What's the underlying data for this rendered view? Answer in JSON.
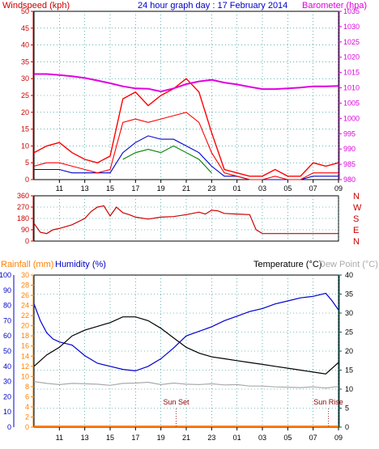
{
  "title": "24 hour graph day : 17 February 2014",
  "colors": {
    "wind": "#ff0000",
    "gust": "#ff0000",
    "wind_avg": "#0000cc",
    "wind_green": "#008000",
    "barometer": "#e000e0",
    "direction": "#cc0000",
    "humidity": "#0000cc",
    "temperature": "#000000",
    "dewpoint": "#aaaaaa",
    "rainfall": "#ff8000",
    "axis_left1": "#cc0000",
    "axis_left3a": "#ff8000",
    "axis_left3b": "#0000cc",
    "axis_right3": "#006060"
  },
  "chart_data": [
    {
      "type": "line",
      "name": "wind-barometer",
      "ylabel_left": "Windspeed (kph)",
      "ylabel_right": "Barometer (hpa)",
      "ylim_left": [
        0,
        50
      ],
      "ylim_right": [
        980,
        1035
      ],
      "yticks_left": [
        "0",
        "5",
        "10",
        "15",
        "20",
        "25",
        "30",
        "35",
        "40",
        "45",
        "50"
      ],
      "yticks_right": [
        "980",
        "985",
        "990",
        "995",
        "1000",
        "1005",
        "1010",
        "1015",
        "1020",
        "1025",
        "1030",
        "1035"
      ],
      "xticks": [
        "11",
        "13",
        "15",
        "17",
        "19",
        "21",
        "23",
        "01",
        "03",
        "05",
        "07",
        "09"
      ],
      "grid": true,
      "series": [
        {
          "key": "gust",
          "x": [
            9,
            10,
            11,
            12,
            13,
            14,
            15,
            16,
            17,
            18,
            19,
            20,
            21,
            22,
            23,
            24,
            25,
            26,
            27,
            28,
            29,
            30,
            31,
            32,
            33
          ],
          "values": [
            8,
            10,
            11,
            8,
            6,
            5,
            7,
            24,
            26,
            22,
            25,
            27,
            30,
            26,
            14,
            3,
            2,
            1,
            1,
            3,
            1,
            1,
            5,
            4,
            5
          ]
        },
        {
          "key": "wind",
          "x": [
            9,
            10,
            11,
            12,
            13,
            14,
            15,
            16,
            17,
            18,
            19,
            20,
            21,
            22,
            23,
            24,
            25,
            26,
            27,
            28,
            29,
            30,
            31,
            32,
            33
          ],
          "values": [
            4,
            5,
            5,
            4,
            3,
            2,
            3,
            17,
            18,
            17,
            18,
            19,
            20,
            17,
            8,
            2,
            1,
            0,
            0,
            1,
            0,
            0,
            2,
            2,
            2
          ]
        },
        {
          "key": "wind_avg",
          "x": [
            9,
            10,
            11,
            12,
            13,
            14,
            15,
            16,
            17,
            18,
            19,
            20,
            21,
            22,
            23,
            24,
            25,
            26,
            27,
            28,
            29,
            30,
            31,
            32,
            33
          ],
          "values": [
            3,
            3,
            3,
            2,
            2,
            2,
            2,
            8,
            11,
            13,
            12,
            12,
            10,
            8,
            4,
            1,
            1,
            0,
            0,
            0,
            0,
            0,
            1,
            1,
            1
          ]
        },
        {
          "key": "wind_green",
          "x": [
            16,
            17,
            18,
            19,
            20,
            21,
            22,
            23
          ],
          "values": [
            6,
            8,
            9,
            8,
            10,
            8,
            6,
            2
          ]
        },
        {
          "key": "barometer",
          "x": [
            9,
            10,
            11,
            12,
            13,
            14,
            15,
            16,
            17,
            18,
            19,
            20,
            21,
            22,
            23,
            24,
            25,
            26,
            27,
            28,
            29,
            30,
            31,
            32,
            33
          ],
          "values": [
            1014.5,
            1014.5,
            1014.2,
            1013.8,
            1013.2,
            1012.4,
            1011.5,
            1010.5,
            1009.8,
            1009.7,
            1008.8,
            1009.8,
            1011.2,
            1012.1,
            1012.6,
            1011.7,
            1011.1,
            1010.3,
            1009.6,
            1009.6,
            1009.8,
            1010.1,
            1010.5,
            1010.5,
            1010.6
          ]
        }
      ]
    },
    {
      "type": "line",
      "name": "wind-direction",
      "yticks_left": [
        "0",
        "90",
        "180",
        "270",
        "360"
      ],
      "ylim": [
        0,
        360
      ],
      "dir_labels": [
        "N",
        "W",
        "S",
        "E",
        "N"
      ],
      "series": [
        {
          "key": "direction",
          "x": [
            9,
            9.5,
            10,
            10.5,
            11,
            12,
            13,
            13.5,
            14,
            14.5,
            15,
            15.5,
            16,
            16.5,
            17,
            18,
            19,
            20,
            21,
            22,
            22.5,
            23,
            23.5,
            24,
            25,
            26,
            26.5,
            27,
            28,
            29,
            30,
            31,
            32,
            33
          ],
          "values": [
            140,
            70,
            60,
            90,
            100,
            130,
            180,
            235,
            270,
            280,
            200,
            270,
            225,
            210,
            190,
            175,
            190,
            195,
            210,
            230,
            215,
            245,
            240,
            220,
            215,
            210,
            90,
            60,
            60,
            60,
            60,
            60,
            60,
            60
          ]
        }
      ]
    },
    {
      "type": "line",
      "name": "temp-humidity",
      "ylabel_left_a": "Rainfall (mm)",
      "ylabel_left_b": "Humidity (%)",
      "ylabel_right_a": "Temperature (°C)",
      "ylabel_right_b": "Dew Point (°C)",
      "ylim_rain": [
        0,
        30
      ],
      "ylim_hum": [
        0,
        100
      ],
      "ylim_temp": [
        0,
        40
      ],
      "yticks_rain": [
        "0",
        "2",
        "4",
        "6",
        "8",
        "10",
        "12",
        "14",
        "16",
        "18",
        "20",
        "22",
        "24",
        "26",
        "28",
        "30"
      ],
      "yticks_hum": [
        "0",
        "10",
        "20",
        "30",
        "40",
        "50",
        "60",
        "70",
        "80",
        "90",
        "100"
      ],
      "yticks_temp": [
        "0",
        "5",
        "10",
        "15",
        "20",
        "25",
        "30",
        "35",
        "40"
      ],
      "annotations": [
        {
          "text": "Sun Set",
          "x": 20.2
        },
        {
          "text": "Sun Rise",
          "x": 32.2
        }
      ],
      "series": [
        {
          "key": "humidity",
          "x": [
            9,
            9.5,
            10,
            10.5,
            11,
            12,
            13,
            14,
            15,
            16,
            17,
            18,
            19,
            20,
            21,
            22,
            23,
            24,
            25,
            26,
            27,
            28,
            29,
            30,
            31,
            32,
            32.5,
            33
          ],
          "values": [
            81,
            70,
            62,
            58,
            56,
            54,
            47,
            42,
            40,
            38,
            37,
            40,
            45,
            52,
            60,
            63,
            66,
            70,
            73,
            76,
            78,
            81,
            83,
            85,
            86,
            88,
            83,
            77
          ]
        },
        {
          "key": "temperature",
          "x": [
            9,
            10,
            11,
            12,
            13,
            14,
            15,
            16,
            17,
            18,
            19,
            20,
            21,
            22,
            23,
            24,
            25,
            26,
            27,
            28,
            29,
            30,
            31,
            32,
            33
          ],
          "values": [
            16,
            19,
            21,
            24,
            25.5,
            26.5,
            27.5,
            29,
            29,
            28,
            26,
            23.5,
            21,
            19.5,
            18.5,
            18,
            17.5,
            17,
            16.5,
            16,
            15.5,
            15,
            14.5,
            14,
            17
          ]
        },
        {
          "key": "dewpoint",
          "x": [
            9,
            10,
            11,
            12,
            13,
            14,
            15,
            16,
            17,
            18,
            19,
            20,
            21,
            22,
            23,
            24,
            25,
            26,
            27,
            28,
            29,
            30,
            31,
            32,
            33
          ],
          "values": [
            12,
            11.5,
            11.2,
            11.5,
            11.4,
            11.3,
            11,
            11.5,
            11.6,
            11.8,
            11.2,
            11.6,
            11.3,
            11.2,
            11.4,
            11.1,
            11.2,
            10.8,
            10.8,
            10.6,
            10.5,
            10.4,
            10.6,
            10.3,
            10.7
          ]
        },
        {
          "key": "rainfall",
          "x": [
            9,
            33
          ],
          "values": [
            0,
            0
          ]
        }
      ]
    }
  ]
}
